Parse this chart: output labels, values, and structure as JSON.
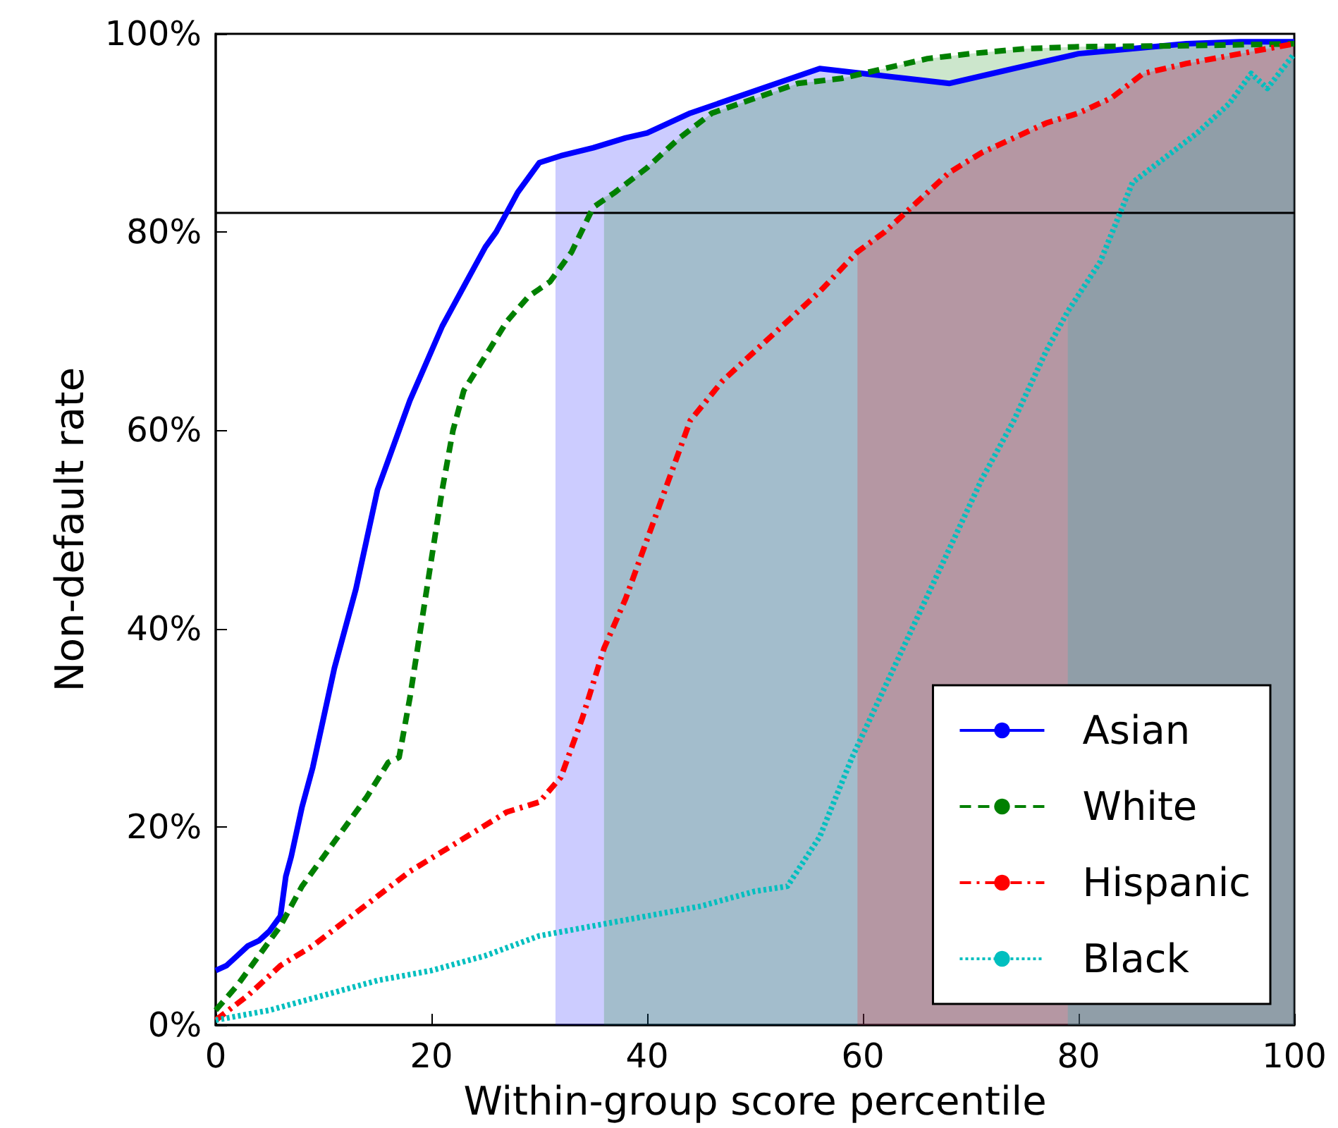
{
  "chart_data": {
    "type": "line",
    "xlabel": "Within-group score percentile",
    "ylabel": "Non-default rate",
    "xlim": [
      0,
      100
    ],
    "xticks": [
      0,
      20,
      40,
      60,
      80,
      100
    ],
    "ylim": [
      0,
      100
    ],
    "yticks": [
      {
        "value": 0,
        "label": "0%"
      },
      {
        "value": 20,
        "label": "20%"
      },
      {
        "value": 40,
        "label": "40%"
      },
      {
        "value": 60,
        "label": "60%"
      },
      {
        "value": 80,
        "label": "80%"
      },
      {
        "value": 100,
        "label": "100%"
      }
    ],
    "grid": false,
    "legend": "bottom right",
    "ref_lines": [
      {
        "axis": "y",
        "value": 82,
        "color": "#000000"
      }
    ],
    "series": [
      {
        "type": "area",
        "color": "#0000ff",
        "x": [
          31.5,
          32,
          35,
          38,
          40,
          44,
          48,
          52,
          56,
          60,
          64,
          68,
          72,
          76,
          80,
          85,
          90,
          95,
          100
        ],
        "values": [
          87.5,
          87.7,
          88.5,
          89.5,
          90,
          92,
          93.5,
          95,
          96.5,
          96,
          95.5,
          95,
          96,
          97,
          98,
          98.5,
          99,
          99.2,
          99.2
        ]
      },
      {
        "type": "area",
        "color": "#008000",
        "x": [
          36,
          37,
          40,
          43,
          46,
          50,
          54,
          58,
          62,
          66,
          70,
          75,
          80,
          90,
          100
        ],
        "values": [
          83.5,
          84,
          86.5,
          89.5,
          92,
          93.5,
          95,
          95.5,
          96.5,
          97.5,
          98,
          98.5,
          98.7,
          98.8,
          99
        ]
      },
      {
        "type": "area",
        "color": "#ff0000",
        "x": [
          59.5,
          62,
          65,
          68,
          71,
          74,
          77,
          80,
          83,
          86,
          90,
          95,
          100
        ],
        "values": [
          78,
          80,
          83,
          86,
          88,
          89.5,
          91,
          92,
          93.5,
          96,
          97,
          98,
          99
        ]
      },
      {
        "type": "area",
        "color": "#00bfbf",
        "x": [
          79,
          82,
          85,
          88,
          91,
          94,
          96,
          97.5,
          100
        ],
        "values": [
          72,
          77,
          85,
          87.5,
          90,
          93,
          96,
          94.5,
          98
        ]
      },
      {
        "name": "Asian",
        "color": "#0000ff",
        "line_style": "solid",
        "x": [
          0,
          1,
          2,
          3,
          4,
          5,
          6,
          6.5,
          7,
          8,
          9,
          10,
          11,
          12,
          13,
          14,
          15,
          16,
          17,
          18,
          19,
          20,
          21,
          22,
          23,
          24,
          25,
          26,
          27,
          28,
          29,
          30,
          32,
          35,
          38,
          40,
          44,
          48,
          52,
          56,
          60,
          64,
          68,
          72,
          76,
          80,
          85,
          90,
          95,
          100
        ],
        "values": [
          5.5,
          6,
          7,
          8,
          8.5,
          9.5,
          11,
          15,
          17,
          22,
          26,
          31,
          36,
          40,
          44,
          49,
          54,
          57,
          60,
          63,
          65.5,
          68,
          70.5,
          72.5,
          74.5,
          76.5,
          78.5,
          80,
          82,
          84,
          85.5,
          87,
          87.7,
          88.5,
          89.5,
          90,
          92,
          93.5,
          95,
          96.5,
          96,
          95.5,
          95,
          96,
          97,
          98,
          98.5,
          99,
          99.2,
          99.2
        ]
      },
      {
        "name": "White",
        "color": "#008000",
        "line_style": "dashed",
        "x": [
          0,
          2,
          4,
          6,
          8,
          10,
          12,
          14,
          16,
          17,
          18,
          19,
          20,
          21,
          22,
          23,
          25,
          27,
          29,
          31,
          33,
          35,
          37,
          40,
          43,
          46,
          50,
          54,
          58,
          62,
          66,
          70,
          75,
          80,
          90,
          100
        ],
        "values": [
          1.5,
          4,
          7,
          10,
          14,
          17,
          20,
          23,
          26.5,
          27,
          33,
          40,
          47,
          54,
          60,
          64,
          67.5,
          71,
          73.5,
          75,
          78,
          82.5,
          84,
          86.5,
          89.5,
          92,
          93.5,
          95,
          95.5,
          96.5,
          97.5,
          98,
          98.5,
          98.7,
          98.8,
          99
        ]
      },
      {
        "name": "Hispanic",
        "color": "#ff0000",
        "line_style": "dashdot",
        "x": [
          0,
          3,
          6,
          9,
          12,
          15,
          18,
          21,
          24,
          27,
          30,
          32,
          34,
          36,
          38,
          40,
          42,
          44,
          47,
          50,
          53,
          56,
          59.5,
          62,
          65,
          68,
          71,
          74,
          77,
          80,
          83,
          86,
          90,
          95,
          100
        ],
        "values": [
          0.5,
          3,
          6,
          8,
          10.5,
          13,
          15.5,
          17.5,
          19.5,
          21.5,
          22.5,
          25,
          31,
          38,
          43,
          49,
          55,
          61,
          65,
          68,
          71,
          74,
          78,
          80,
          83,
          86,
          88,
          89.5,
          91,
          92,
          93.5,
          96,
          97,
          98,
          99
        ]
      },
      {
        "name": "Black",
        "color": "#00bfbf",
        "line_style": "dotted",
        "x": [
          0,
          5,
          10,
          15,
          20,
          25,
          30,
          35,
          40,
          45,
          50,
          53,
          56,
          59,
          62,
          65,
          68,
          71,
          74,
          77,
          79,
          82,
          85,
          88,
          91,
          94,
          96,
          97.5,
          100
        ],
        "values": [
          0.5,
          1.5,
          3,
          4.5,
          5.5,
          7,
          9,
          10,
          11,
          12,
          13.5,
          14,
          19,
          27,
          34,
          41,
          48,
          55,
          61,
          68,
          72,
          77,
          85,
          87.5,
          90,
          93,
          96,
          94.5,
          98
        ]
      }
    ]
  }
}
